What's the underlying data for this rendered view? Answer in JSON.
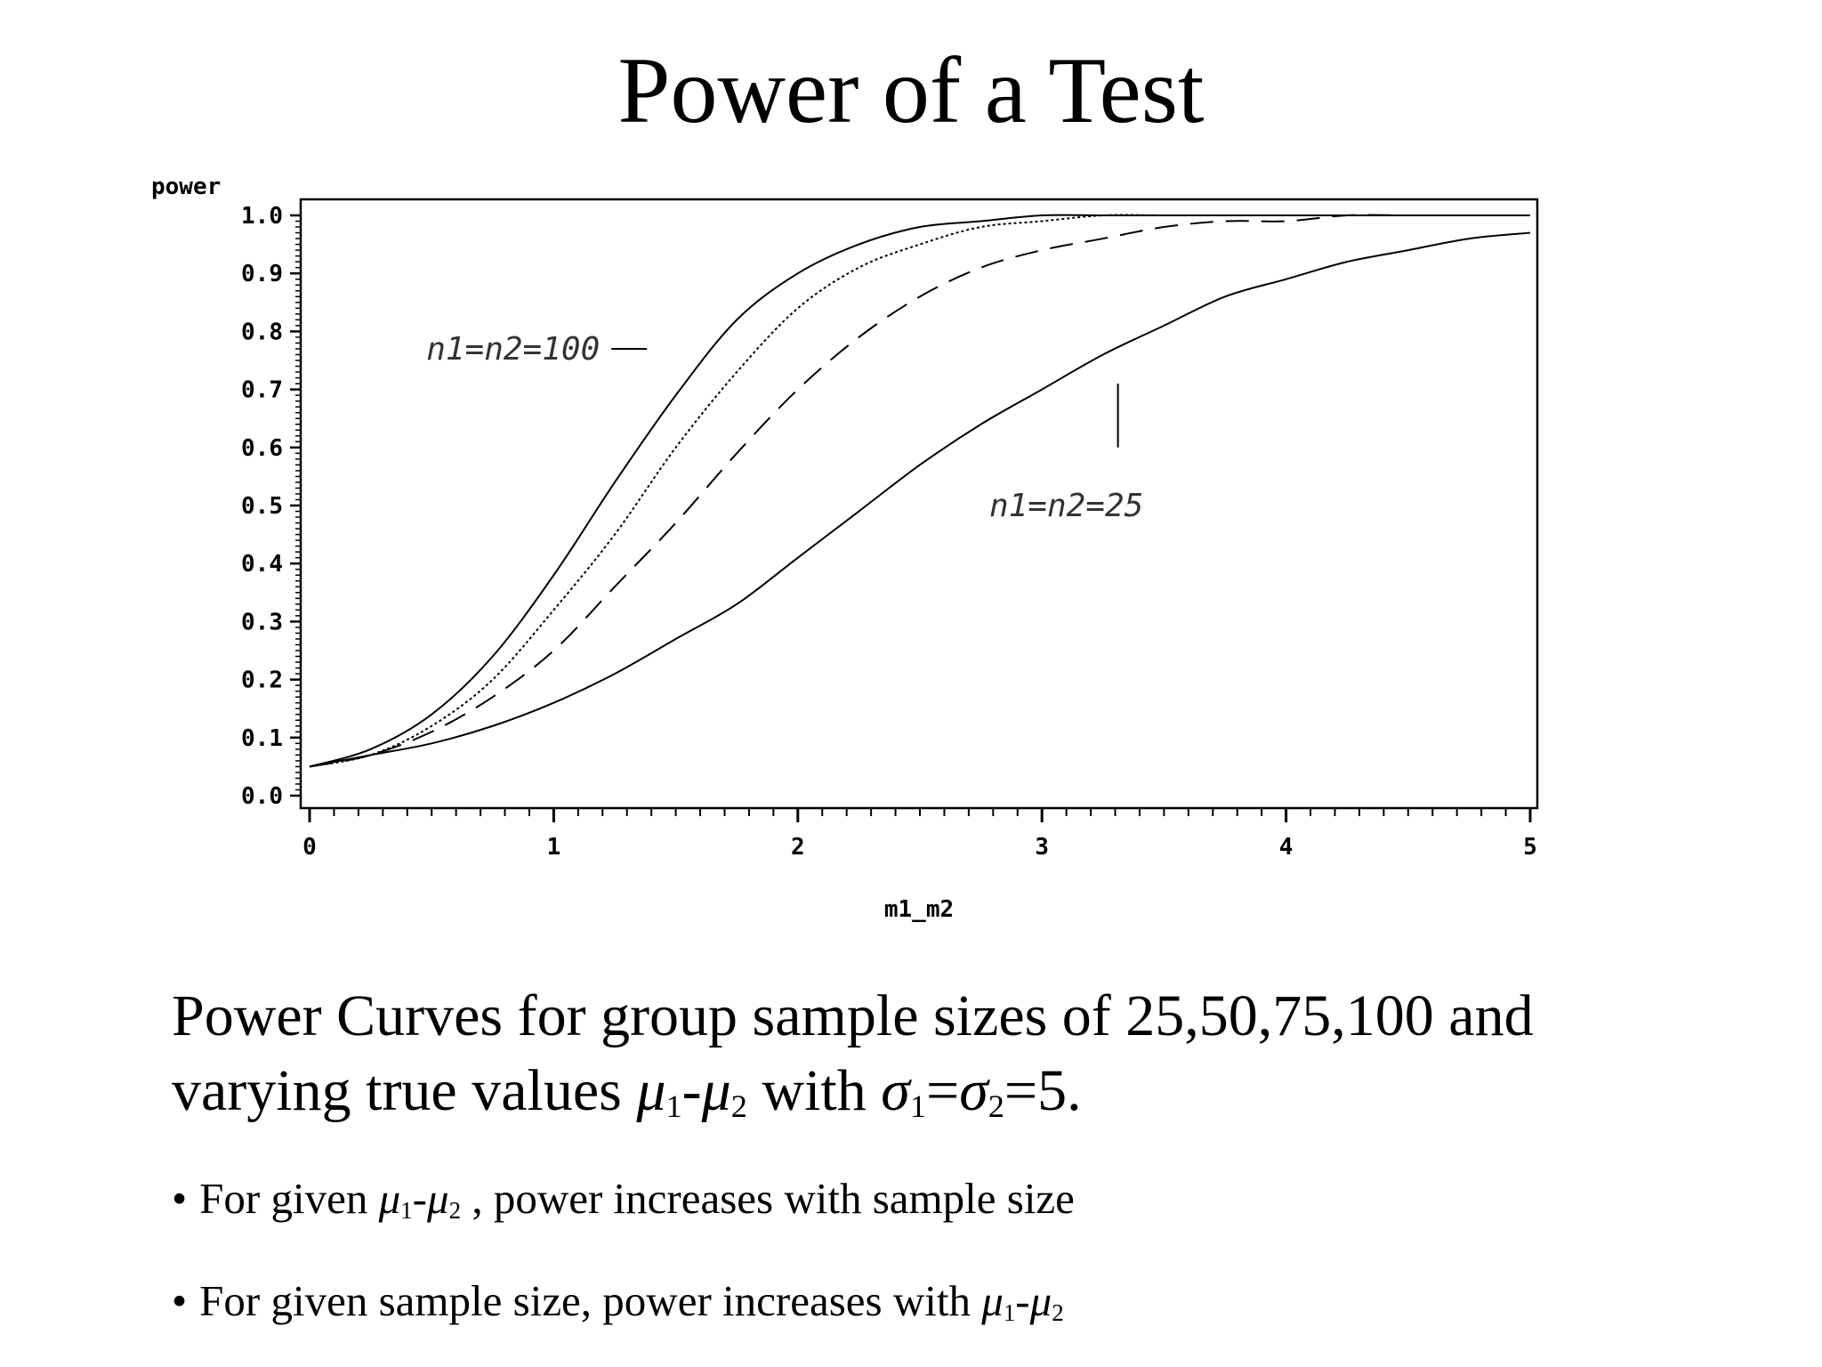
{
  "title": "Power of a Test",
  "chart_data": {
    "type": "line",
    "xlabel": "m1_m2",
    "ylabel": "power",
    "xlim": [
      0,
      5
    ],
    "ylim": [
      0,
      1
    ],
    "x_ticks": [
      "0",
      "1",
      "2",
      "3",
      "4",
      "5"
    ],
    "y_ticks": [
      "0.0",
      "0.1",
      "0.2",
      "0.3",
      "0.4",
      "0.5",
      "0.6",
      "0.7",
      "0.8",
      "0.9",
      "1.0"
    ],
    "grid": false,
    "x": [
      0,
      0.25,
      0.5,
      0.75,
      1,
      1.25,
      1.5,
      1.75,
      2,
      2.25,
      2.5,
      2.75,
      3,
      3.25,
      3.5,
      3.75,
      4,
      4.25,
      4.5,
      4.75,
      5
    ],
    "series": [
      {
        "values": [
          0.05,
          0.08,
          0.14,
          0.24,
          0.38,
          0.54,
          0.69,
          0.82,
          0.9,
          0.95,
          0.98,
          0.99,
          1.0,
          1.0,
          1.0,
          1.0,
          1.0,
          1.0,
          1.0,
          1.0,
          1.0
        ],
        "style": "solid"
      },
      {
        "values": [
          0.05,
          0.07,
          0.12,
          0.2,
          0.32,
          0.45,
          0.6,
          0.73,
          0.84,
          0.91,
          0.95,
          0.98,
          0.99,
          1.0,
          1.0,
          1.0,
          1.0,
          1.0,
          1.0,
          1.0,
          1.0
        ],
        "style": "dotted"
      },
      {
        "values": [
          0.05,
          0.07,
          0.11,
          0.17,
          0.25,
          0.36,
          0.47,
          0.59,
          0.7,
          0.79,
          0.86,
          0.91,
          0.94,
          0.96,
          0.98,
          0.99,
          0.99,
          1.0,
          1.0,
          1.0,
          1.0
        ],
        "style": "long-dash"
      },
      {
        "values": [
          0.05,
          0.07,
          0.09,
          0.12,
          0.16,
          0.21,
          0.27,
          0.33,
          0.41,
          0.49,
          0.57,
          0.64,
          0.7,
          0.76,
          0.81,
          0.86,
          0.89,
          0.92,
          0.94,
          0.96,
          0.97
        ],
        "style": "solid"
      }
    ],
    "annotations": [
      {
        "text": "n1=n2=100",
        "x": 1.2,
        "y": 0.77
      },
      {
        "text": "n1=n2=25",
        "x": 3.1,
        "y": 0.5
      }
    ]
  },
  "caption": {
    "line1": "Power Curves for group sample sizes of 25,50,75,100 and",
    "line2_prefix": "varying true values ",
    "mu": "μ",
    "sub1": "1",
    "sub2": "2",
    "dash": "-",
    "with": " with ",
    "sigma": "σ",
    "eq1": "=",
    "eq2": "=5."
  },
  "bullets": {
    "dot": "•",
    "b1_prefix": "For given ",
    "b1_suffix": " , power increases with sample size",
    "b2_prefix": "For given sample size, power increases with "
  }
}
